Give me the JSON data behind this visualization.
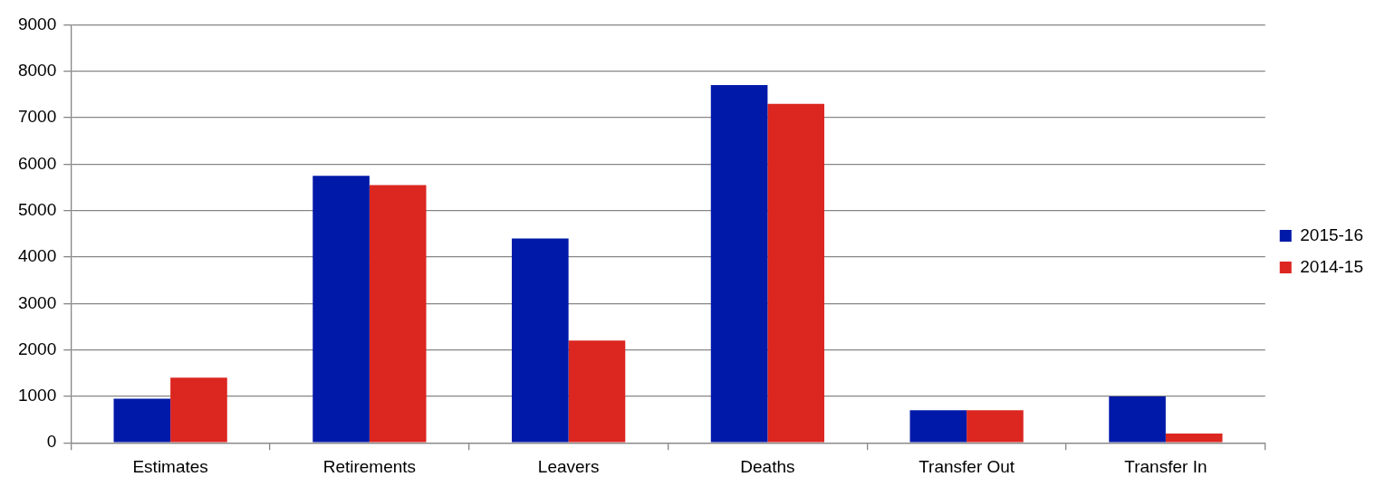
{
  "chart_data": {
    "type": "bar",
    "categories": [
      "Estimates",
      "Retirements",
      "Leavers",
      "Deaths",
      "Transfer Out",
      "Transfer In"
    ],
    "series": [
      {
        "name": "2015-16",
        "color": "#0019a8",
        "values": [
          950,
          5750,
          4400,
          7700,
          700,
          1000
        ]
      },
      {
        "name": "2014-15",
        "color": "#dc2620",
        "values": [
          1400,
          5550,
          2200,
          7300,
          700,
          200
        ]
      }
    ],
    "ylim": [
      0,
      9000
    ],
    "yticks": [
      0,
      1000,
      2000,
      3000,
      4000,
      5000,
      6000,
      7000,
      8000,
      9000
    ],
    "grid": "y",
    "legend": "right"
  }
}
